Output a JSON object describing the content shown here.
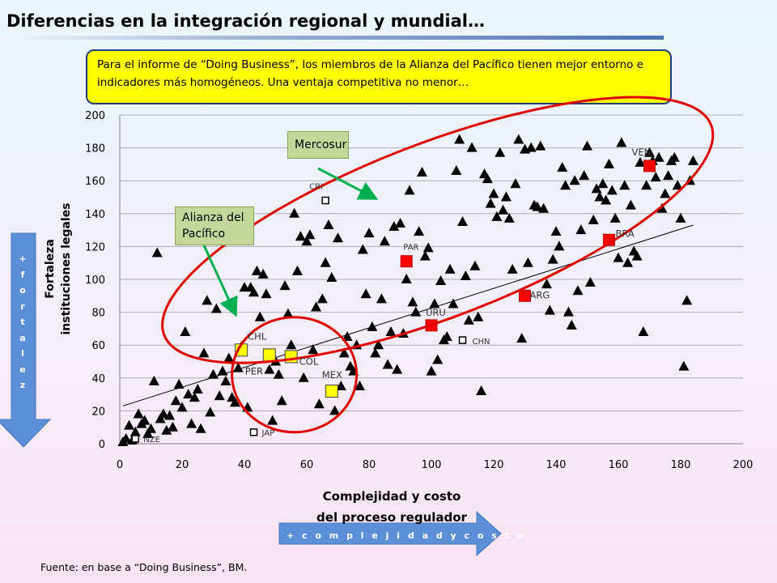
{
  "title": "Diferencias en la integración regional y mundial…",
  "callout": "Para  el informe de “Doing Business”,  los miembros de la Alianza del Pacífico tienen mejor entorno e indicadores más homogéneos. Una ventaja competitiva no menor…",
  "side_arrow_text": "+ f o r t a l e z",
  "bottom_arrow_text": "+ c o m p l e j i d a d  y  c o s t o",
  "source": "Fuente: en base a “Doing Business”, BM.",
  "groups": {
    "mercosur": "Mercosur",
    "alianza_line1": "Alianza del",
    "alianza_line2": "Pacífico"
  },
  "colors": {
    "marker": "#000000",
    "mercosur": "#ff0000",
    "alianza": "#ffff00",
    "ellipse": "#e00000",
    "group_arrow": "#00b050",
    "arrow_fill": "#5b8fd6",
    "grid": "#b0b0b0"
  },
  "chart_data": {
    "type": "scatter",
    "xlabel": "Complejidad  y costo del proceso regulador",
    "xlabel_lines": [
      "Complejidad  y costo",
      "del proceso regulador"
    ],
    "ylabel": "Fortaleza instituciones  legales",
    "ylabel_lines": [
      "Fortaleza",
      "instituciones  legales"
    ],
    "xlim": [
      0,
      200
    ],
    "ylim": [
      0,
      200
    ],
    "xticks": [
      0,
      20,
      40,
      60,
      80,
      100,
      120,
      140,
      160,
      180,
      200
    ],
    "yticks": [
      0,
      20,
      40,
      60,
      80,
      100,
      120,
      140,
      160,
      180,
      200
    ],
    "grid": "horizontal",
    "trendline": {
      "x": [
        1,
        184
      ],
      "y": [
        23,
        133
      ]
    },
    "ellipses": [
      {
        "cx": 102,
        "cy": 130,
        "rx": 94,
        "ry": 53,
        "angle": 21
      },
      {
        "cx": 56,
        "cy": 42,
        "rx": 20,
        "ry": 35,
        "angle": 0
      }
    ],
    "series": [
      {
        "marker": "triangle",
        "points": [
          [
            1,
            1
          ],
          [
            2,
            3
          ],
          [
            3,
            11
          ],
          [
            4,
            2
          ],
          [
            5,
            7
          ],
          [
            6,
            18
          ],
          [
            7,
            12
          ],
          [
            8,
            14
          ],
          [
            9,
            6
          ],
          [
            10,
            9
          ],
          [
            11,
            38
          ],
          [
            12,
            116
          ],
          [
            13,
            15
          ],
          [
            14,
            18
          ],
          [
            15,
            8
          ],
          [
            16,
            17
          ],
          [
            17,
            10
          ],
          [
            18,
            26
          ],
          [
            19,
            36
          ],
          [
            20,
            22
          ],
          [
            21,
            68
          ],
          [
            22,
            30
          ],
          [
            23,
            12
          ],
          [
            24,
            28
          ],
          [
            25,
            33
          ],
          [
            26,
            9
          ],
          [
            27,
            55
          ],
          [
            28,
            87
          ],
          [
            29,
            19
          ],
          [
            30,
            42
          ],
          [
            31,
            82
          ],
          [
            32,
            29
          ],
          [
            33,
            44
          ],
          [
            34,
            38
          ],
          [
            35,
            52
          ],
          [
            36,
            28
          ],
          [
            37,
            25
          ],
          [
            38,
            46
          ],
          [
            39,
            59
          ],
          [
            40,
            95
          ],
          [
            41,
            22
          ],
          [
            42,
            95
          ],
          [
            43,
            92
          ],
          [
            44,
            105
          ],
          [
            45,
            77
          ],
          [
            46,
            103
          ],
          [
            47,
            91
          ],
          [
            48,
            45
          ],
          [
            49,
            14
          ],
          [
            50,
            50
          ],
          [
            51,
            42
          ],
          [
            52,
            26
          ],
          [
            53,
            96
          ],
          [
            54,
            79
          ],
          [
            55,
            60
          ],
          [
            56,
            140
          ],
          [
            57,
            105
          ],
          [
            58,
            126
          ],
          [
            59,
            40
          ],
          [
            60,
            123
          ],
          [
            61,
            127
          ],
          [
            62,
            57
          ],
          [
            63,
            83
          ],
          [
            64,
            24
          ],
          [
            65,
            88
          ],
          [
            66,
            110
          ],
          [
            67,
            133
          ],
          [
            68,
            101
          ],
          [
            69,
            20
          ],
          [
            70,
            125
          ],
          [
            71,
            35
          ],
          [
            72,
            55
          ],
          [
            73,
            65
          ],
          [
            74,
            47
          ],
          [
            75,
            44
          ],
          [
            76,
            60
          ],
          [
            77,
            35
          ],
          [
            78,
            118
          ],
          [
            79,
            91
          ],
          [
            80,
            128
          ],
          [
            81,
            71
          ],
          [
            82,
            55
          ],
          [
            83,
            60
          ],
          [
            84,
            88
          ],
          [
            85,
            123
          ],
          [
            86,
            48
          ],
          [
            87,
            68
          ],
          [
            88,
            132
          ],
          [
            89,
            45
          ],
          [
            90,
            134
          ],
          [
            91,
            67
          ],
          [
            92,
            100
          ],
          [
            93,
            154
          ],
          [
            94,
            86
          ],
          [
            95,
            80
          ],
          [
            96,
            129
          ],
          [
            97,
            165
          ],
          [
            98,
            114
          ],
          [
            99,
            119
          ],
          [
            100,
            44
          ],
          [
            101,
            85
          ],
          [
            102,
            51
          ],
          [
            103,
            99
          ],
          [
            104,
            63
          ],
          [
            105,
            65
          ],
          [
            106,
            106
          ],
          [
            107,
            85
          ],
          [
            108,
            166
          ],
          [
            109,
            185
          ],
          [
            110,
            135
          ],
          [
            111,
            102
          ],
          [
            112,
            75
          ],
          [
            113,
            180
          ],
          [
            114,
            108
          ],
          [
            115,
            77
          ],
          [
            116,
            32
          ],
          [
            117,
            164
          ],
          [
            118,
            161
          ],
          [
            119,
            146
          ],
          [
            120,
            152
          ],
          [
            121,
            138
          ],
          [
            122,
            177
          ],
          [
            123,
            142
          ],
          [
            124,
            150
          ],
          [
            125,
            137
          ],
          [
            126,
            106
          ],
          [
            127,
            158
          ],
          [
            128,
            185
          ],
          [
            129,
            64
          ],
          [
            130,
            179
          ],
          [
            131,
            110
          ],
          [
            132,
            180
          ],
          [
            133,
            145
          ],
          [
            134,
            144
          ],
          [
            135,
            181
          ],
          [
            136,
            143
          ],
          [
            137,
            97
          ],
          [
            138,
            81
          ],
          [
            139,
            112
          ],
          [
            140,
            129
          ],
          [
            141,
            120
          ],
          [
            142,
            168
          ],
          [
            143,
            157
          ],
          [
            144,
            80
          ],
          [
            145,
            72
          ],
          [
            146,
            160
          ],
          [
            147,
            93
          ],
          [
            148,
            130
          ],
          [
            149,
            163
          ],
          [
            150,
            181
          ],
          [
            151,
            98
          ],
          [
            152,
            136
          ],
          [
            153,
            155
          ],
          [
            154,
            150
          ],
          [
            155,
            158
          ],
          [
            156,
            148
          ],
          [
            157,
            170
          ],
          [
            158,
            154
          ],
          [
            159,
            137
          ],
          [
            160,
            113
          ],
          [
            161,
            183
          ],
          [
            162,
            157
          ],
          [
            163,
            110
          ],
          [
            164,
            145
          ],
          [
            165,
            117
          ],
          [
            166,
            114
          ],
          [
            167,
            171
          ],
          [
            168,
            68
          ],
          [
            169,
            157
          ],
          [
            170,
            177
          ],
          [
            171,
            172
          ],
          [
            172,
            162
          ],
          [
            173,
            174
          ],
          [
            174,
            143
          ],
          [
            175,
            152
          ],
          [
            176,
            163
          ],
          [
            177,
            172
          ],
          [
            178,
            174
          ],
          [
            179,
            157
          ],
          [
            180,
            137
          ],
          [
            181,
            47
          ],
          [
            182,
            87
          ],
          [
            183,
            160
          ],
          [
            184,
            172
          ]
        ]
      },
      {
        "name": "Mercosur",
        "marker": "square",
        "points": [
          [
            170,
            169
          ],
          [
            157,
            124
          ],
          [
            92,
            111
          ],
          [
            130,
            90
          ],
          [
            100,
            72
          ]
        ]
      },
      {
        "name": "Alianza del Pacífico",
        "marker": "square",
        "points": [
          [
            39,
            57
          ],
          [
            48,
            54
          ],
          [
            55,
            53
          ],
          [
            68,
            32
          ]
        ]
      }
    ],
    "annotations": [
      {
        "label": "VEN",
        "x": 170,
        "y": 169
      },
      {
        "label": "BRA",
        "x": 157,
        "y": 124
      },
      {
        "label": "PAR",
        "x": 92,
        "y": 111
      },
      {
        "label": "ARG",
        "x": 130,
        "y": 90
      },
      {
        "label": "URU",
        "x": 100,
        "y": 72
      },
      {
        "label": "CHL",
        "x": 39,
        "y": 57
      },
      {
        "label": "COL",
        "x": 55,
        "y": 53
      },
      {
        "label": "PER",
        "x": 48,
        "y": 54
      },
      {
        "label": "MEX",
        "x": 68,
        "y": 32
      },
      {
        "label": "CRI",
        "x": 66,
        "y": 148
      },
      {
        "label": "CHN",
        "x": 110,
        "y": 63
      },
      {
        "label": "JAP",
        "x": 43,
        "y": 7
      },
      {
        "label": "NZE",
        "x": 5,
        "y": 3
      }
    ]
  }
}
